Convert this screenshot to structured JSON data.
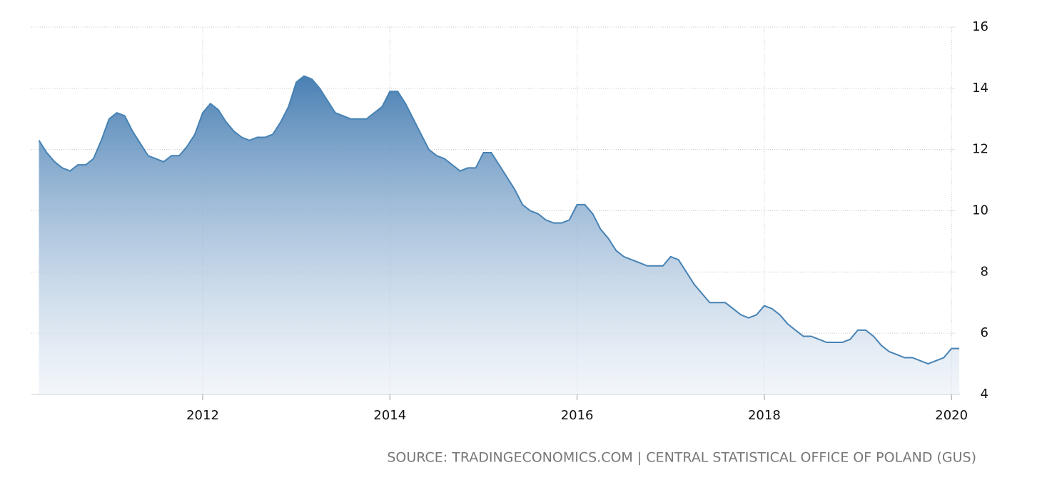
{
  "chart_data": {
    "type": "area",
    "source": "SOURCE: TRADINGECONOMICS.COM | CENTRAL STATISTICAL OFFICE OF POLAND (GUS)",
    "x": [
      2010.25,
      2010.333,
      2010.417,
      2010.5,
      2010.583,
      2010.667,
      2010.75,
      2010.833,
      2010.917,
      2011.0,
      2011.083,
      2011.167,
      2011.25,
      2011.333,
      2011.417,
      2011.5,
      2011.583,
      2011.667,
      2011.75,
      2011.833,
      2011.917,
      2012.0,
      2012.083,
      2012.167,
      2012.25,
      2012.333,
      2012.417,
      2012.5,
      2012.583,
      2012.667,
      2012.75,
      2012.833,
      2012.917,
      2013.0,
      2013.083,
      2013.167,
      2013.25,
      2013.333,
      2013.417,
      2013.5,
      2013.583,
      2013.667,
      2013.75,
      2013.833,
      2013.917,
      2014.0,
      2014.083,
      2014.167,
      2014.25,
      2014.333,
      2014.417,
      2014.5,
      2014.583,
      2014.667,
      2014.75,
      2014.833,
      2014.917,
      2015.0,
      2015.083,
      2015.167,
      2015.25,
      2015.333,
      2015.417,
      2015.5,
      2015.583,
      2015.667,
      2015.75,
      2015.833,
      2015.917,
      2016.0,
      2016.083,
      2016.167,
      2016.25,
      2016.333,
      2016.417,
      2016.5,
      2016.583,
      2016.667,
      2016.75,
      2016.833,
      2016.917,
      2017.0,
      2017.083,
      2017.167,
      2017.25,
      2017.333,
      2017.417,
      2017.5,
      2017.583,
      2017.667,
      2017.75,
      2017.833,
      2017.917,
      2018.0,
      2018.083,
      2018.167,
      2018.25,
      2018.333,
      2018.417,
      2018.5,
      2018.583,
      2018.667,
      2018.75,
      2018.833,
      2018.917,
      2019.0,
      2019.083,
      2019.167,
      2019.25,
      2019.333,
      2019.417,
      2019.5,
      2019.583,
      2019.667,
      2019.75,
      2019.833,
      2019.917,
      2020.0,
      2020.083
    ],
    "series": [
      {
        "color": "#4682b4",
        "values": [
          12.3,
          11.9,
          11.6,
          11.4,
          11.3,
          11.5,
          11.5,
          11.7,
          12.3,
          13.0,
          13.2,
          13.1,
          12.6,
          12.2,
          11.8,
          11.7,
          11.6,
          11.8,
          11.8,
          12.1,
          12.5,
          13.2,
          13.5,
          13.3,
          12.9,
          12.6,
          12.4,
          12.3,
          12.4,
          12.4,
          12.5,
          12.9,
          13.4,
          14.2,
          14.4,
          14.3,
          14.0,
          13.6,
          13.2,
          13.1,
          13.0,
          13.0,
          13.0,
          13.2,
          13.4,
          13.9,
          13.9,
          13.5,
          13.0,
          12.5,
          12.0,
          11.8,
          11.7,
          11.5,
          11.3,
          11.4,
          11.4,
          11.9,
          11.9,
          11.5,
          11.1,
          10.7,
          10.2,
          10.0,
          9.9,
          9.7,
          9.6,
          9.6,
          9.7,
          10.2,
          10.2,
          9.9,
          9.4,
          9.1,
          8.7,
          8.5,
          8.4,
          8.3,
          8.2,
          8.2,
          8.2,
          8.5,
          8.4,
          8.0,
          7.6,
          7.3,
          7.0,
          7.0,
          7.0,
          6.8,
          6.6,
          6.5,
          6.6,
          6.9,
          6.8,
          6.6,
          6.3,
          6.1,
          5.9,
          5.9,
          5.8,
          5.7,
          5.7,
          5.7,
          5.8,
          6.1,
          6.1,
          5.9,
          5.6,
          5.4,
          5.3,
          5.2,
          5.2,
          5.1,
          5.0,
          5.1,
          5.2,
          5.5,
          5.5
        ]
      }
    ],
    "xlim": [
      2010.17,
      2020.09
    ],
    "xticks": [
      2012,
      2014,
      2016,
      2018,
      2020
    ],
    "ylim": [
      4,
      16
    ],
    "yticks": [
      4,
      6,
      8,
      10,
      12,
      14,
      16
    ],
    "grid": true
  }
}
